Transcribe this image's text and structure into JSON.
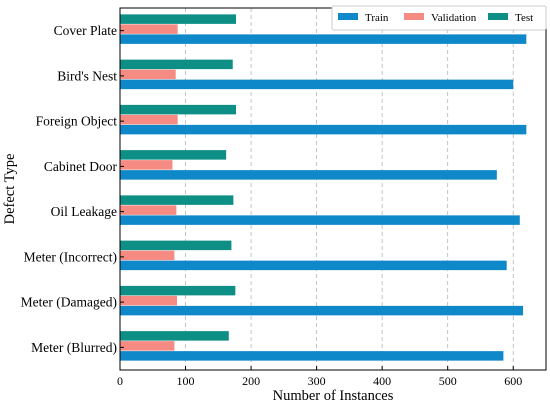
{
  "chart_data": {
    "type": "bar",
    "orientation": "horizontal",
    "categories": [
      "Cover Plate",
      "Bird's Nest",
      "Foreign Object",
      "Cabinet Door",
      "Oil Leakage",
      "Meter (Incorrect)",
      "Meter (Damaged)",
      "Meter (Blurred)"
    ],
    "series": [
      {
        "name": "Train",
        "color": "#0e88c8",
        "values": [
          620,
          600,
          620,
          575,
          610,
          590,
          615,
          585
        ]
      },
      {
        "name": "Validation",
        "color": "#f58b82",
        "values": [
          88,
          85,
          88,
          80,
          86,
          83,
          87,
          83
        ]
      },
      {
        "name": "Test",
        "color": "#0d8f86",
        "values": [
          177,
          172,
          177,
          162,
          173,
          170,
          176,
          166
        ]
      }
    ],
    "xlabel": "Number of Instances",
    "ylabel": "Defect Type",
    "xlim": [
      0,
      650
    ],
    "xticks": [
      0,
      100,
      200,
      300,
      400,
      500,
      600
    ],
    "grid": "vertical dashed",
    "legend_position": "top-right"
  }
}
